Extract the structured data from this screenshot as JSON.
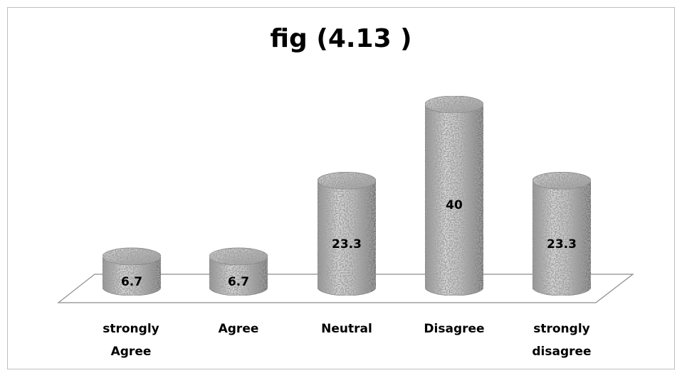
{
  "chart_data": {
    "type": "bar",
    "style": "3d-cylinder",
    "title": "fig (4.13 )",
    "categories": [
      [
        "strongly",
        "Agree"
      ],
      [
        "Agree"
      ],
      [
        "Neutral"
      ],
      [
        "Disagree"
      ],
      [
        "strongly",
        "disagree"
      ]
    ],
    "values": [
      6.7,
      6.7,
      23.3,
      40,
      23.3
    ],
    "data_labels": [
      "6.7",
      "6.7",
      "23.3",
      "40",
      "23.3"
    ],
    "xlabel": "",
    "ylabel": "",
    "ylim": [
      0,
      40
    ],
    "grid": false,
    "legend": false
  }
}
